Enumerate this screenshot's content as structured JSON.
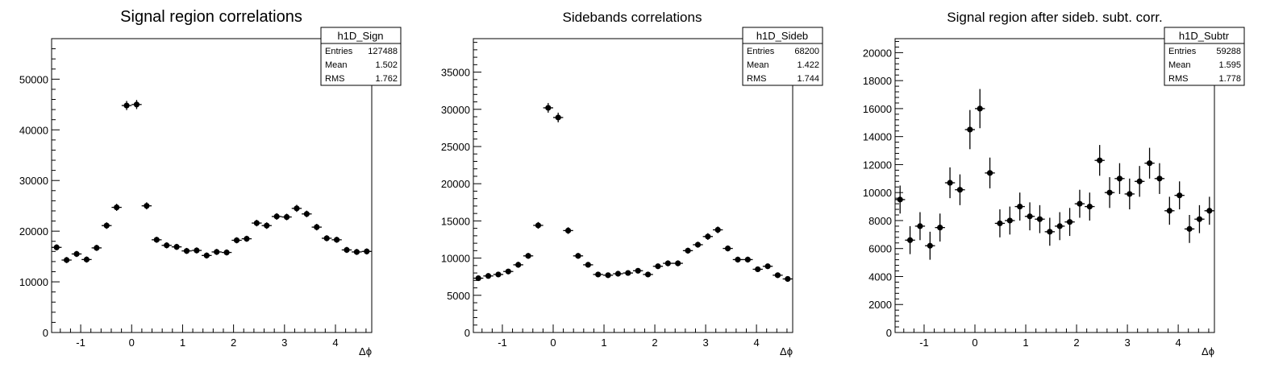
{
  "chart_data": [
    {
      "type": "scatter",
      "title": "Signal region correlations",
      "xlabel": "Δϕ",
      "ylabel": "",
      "xlim": [
        -1.5708,
        4.7124
      ],
      "ylim": [
        0,
        58000
      ],
      "xticks": [
        "-1",
        "0",
        "1",
        "2",
        "3",
        "4"
      ],
      "xtick_values": [
        -1,
        0,
        1,
        2,
        3,
        4
      ],
      "yticks": [
        "0",
        "10000",
        "20000",
        "30000",
        "40000",
        "50000"
      ],
      "ytick_values": [
        0,
        10000,
        20000,
        30000,
        40000,
        50000
      ],
      "stats": {
        "name": "h1D_Sign",
        "rows": [
          {
            "label": "Entries",
            "value": "127488"
          },
          {
            "label": "Mean",
            "value": "1.502"
          },
          {
            "label": "RMS",
            "value": "1.762"
          }
        ]
      },
      "series": [
        {
          "name": "h1D_Sign",
          "values": [
            16800,
            14300,
            15500,
            14400,
            16700,
            21100,
            24700,
            44800,
            45000,
            25000,
            18300,
            17200,
            16900,
            16100,
            16200,
            15200,
            15900,
            15800,
            18200,
            18500,
            21600,
            21100,
            22900,
            22800,
            24500,
            23400,
            20800,
            18600,
            18300,
            16300,
            15900,
            16000
          ],
          "errors": [
            600,
            600,
            600,
            600,
            600,
            650,
            700,
            900,
            900,
            700,
            600,
            600,
            600,
            600,
            600,
            600,
            600,
            600,
            600,
            600,
            650,
            650,
            650,
            650,
            700,
            650,
            650,
            600,
            600,
            600,
            600,
            600
          ]
        }
      ]
    },
    {
      "type": "scatter",
      "title": "Sidebands correlations",
      "xlabel": "Δϕ",
      "ylabel": "",
      "xlim": [
        -1.5708,
        4.7124
      ],
      "ylim": [
        0,
        39500
      ],
      "xticks": [
        "-1",
        "0",
        "1",
        "2",
        "3",
        "4"
      ],
      "xtick_values": [
        -1,
        0,
        1,
        2,
        3,
        4
      ],
      "yticks": [
        "0",
        "5000",
        "10000",
        "15000",
        "20000",
        "25000",
        "30000",
        "35000"
      ],
      "ytick_values": [
        0,
        5000,
        10000,
        15000,
        20000,
        25000,
        30000,
        35000
      ],
      "stats": {
        "name": "h1D_Sideb",
        "rows": [
          {
            "label": "Entries",
            "value": "68200"
          },
          {
            "label": "Mean",
            "value": "1.422"
          },
          {
            "label": "RMS",
            "value": "1.744"
          }
        ]
      },
      "series": [
        {
          "name": "h1D_Sideb",
          "values": [
            7300,
            7600,
            7800,
            8200,
            9100,
            10300,
            14400,
            30200,
            28900,
            13700,
            10300,
            9100,
            7800,
            7700,
            7900,
            8000,
            8300,
            7800,
            8900,
            9300,
            9300,
            11000,
            11800,
            12900,
            13800,
            11300,
            9800,
            9800,
            8500,
            8900,
            7700,
            7200
          ],
          "errors": [
            350,
            350,
            350,
            350,
            400,
            400,
            450,
            650,
            650,
            450,
            400,
            350,
            350,
            350,
            350,
            350,
            350,
            350,
            350,
            400,
            400,
            400,
            400,
            450,
            450,
            400,
            400,
            400,
            350,
            350,
            350,
            350
          ]
        }
      ]
    },
    {
      "type": "scatter",
      "title": "Signal region after sideb. subt. corr.",
      "xlabel": "Δϕ",
      "ylabel": "",
      "xlim": [
        -1.5708,
        4.7124
      ],
      "ylim": [
        0,
        21000
      ],
      "xticks": [
        "-1",
        "0",
        "1",
        "2",
        "3",
        "4"
      ],
      "xtick_values": [
        -1,
        0,
        1,
        2,
        3,
        4
      ],
      "yticks": [
        "0",
        "2000",
        "4000",
        "6000",
        "8000",
        "10000",
        "12000",
        "14000",
        "16000",
        "18000",
        "20000"
      ],
      "ytick_values": [
        0,
        2000,
        4000,
        6000,
        8000,
        10000,
        12000,
        14000,
        16000,
        18000,
        20000
      ],
      "stats": {
        "name": "h1D_Subtr",
        "rows": [
          {
            "label": "Entries",
            "value": "59288"
          },
          {
            "label": "Mean",
            "value": "1.595"
          },
          {
            "label": "RMS",
            "value": "1.778"
          }
        ]
      },
      "series": [
        {
          "name": "h1D_Subtr",
          "values": [
            9500,
            6600,
            7600,
            6200,
            7500,
            10700,
            10200,
            14500,
            16000,
            11400,
            7800,
            8000,
            9000,
            8300,
            8100,
            7200,
            7600,
            7900,
            9200,
            9000,
            12300,
            10000,
            11000,
            9900,
            10800,
            12100,
            11000,
            8700,
            9800,
            7400,
            8100,
            8700
          ],
          "errors": [
            1000,
            1000,
            1000,
            1000,
            1000,
            1100,
            1100,
            1400,
            1400,
            1100,
            1000,
            1000,
            1000,
            1000,
            1000,
            1000,
            1000,
            1000,
            1000,
            1000,
            1100,
            1100,
            1100,
            1100,
            1100,
            1100,
            1100,
            1000,
            1000,
            1000,
            1000,
            1000
          ]
        }
      ]
    }
  ]
}
